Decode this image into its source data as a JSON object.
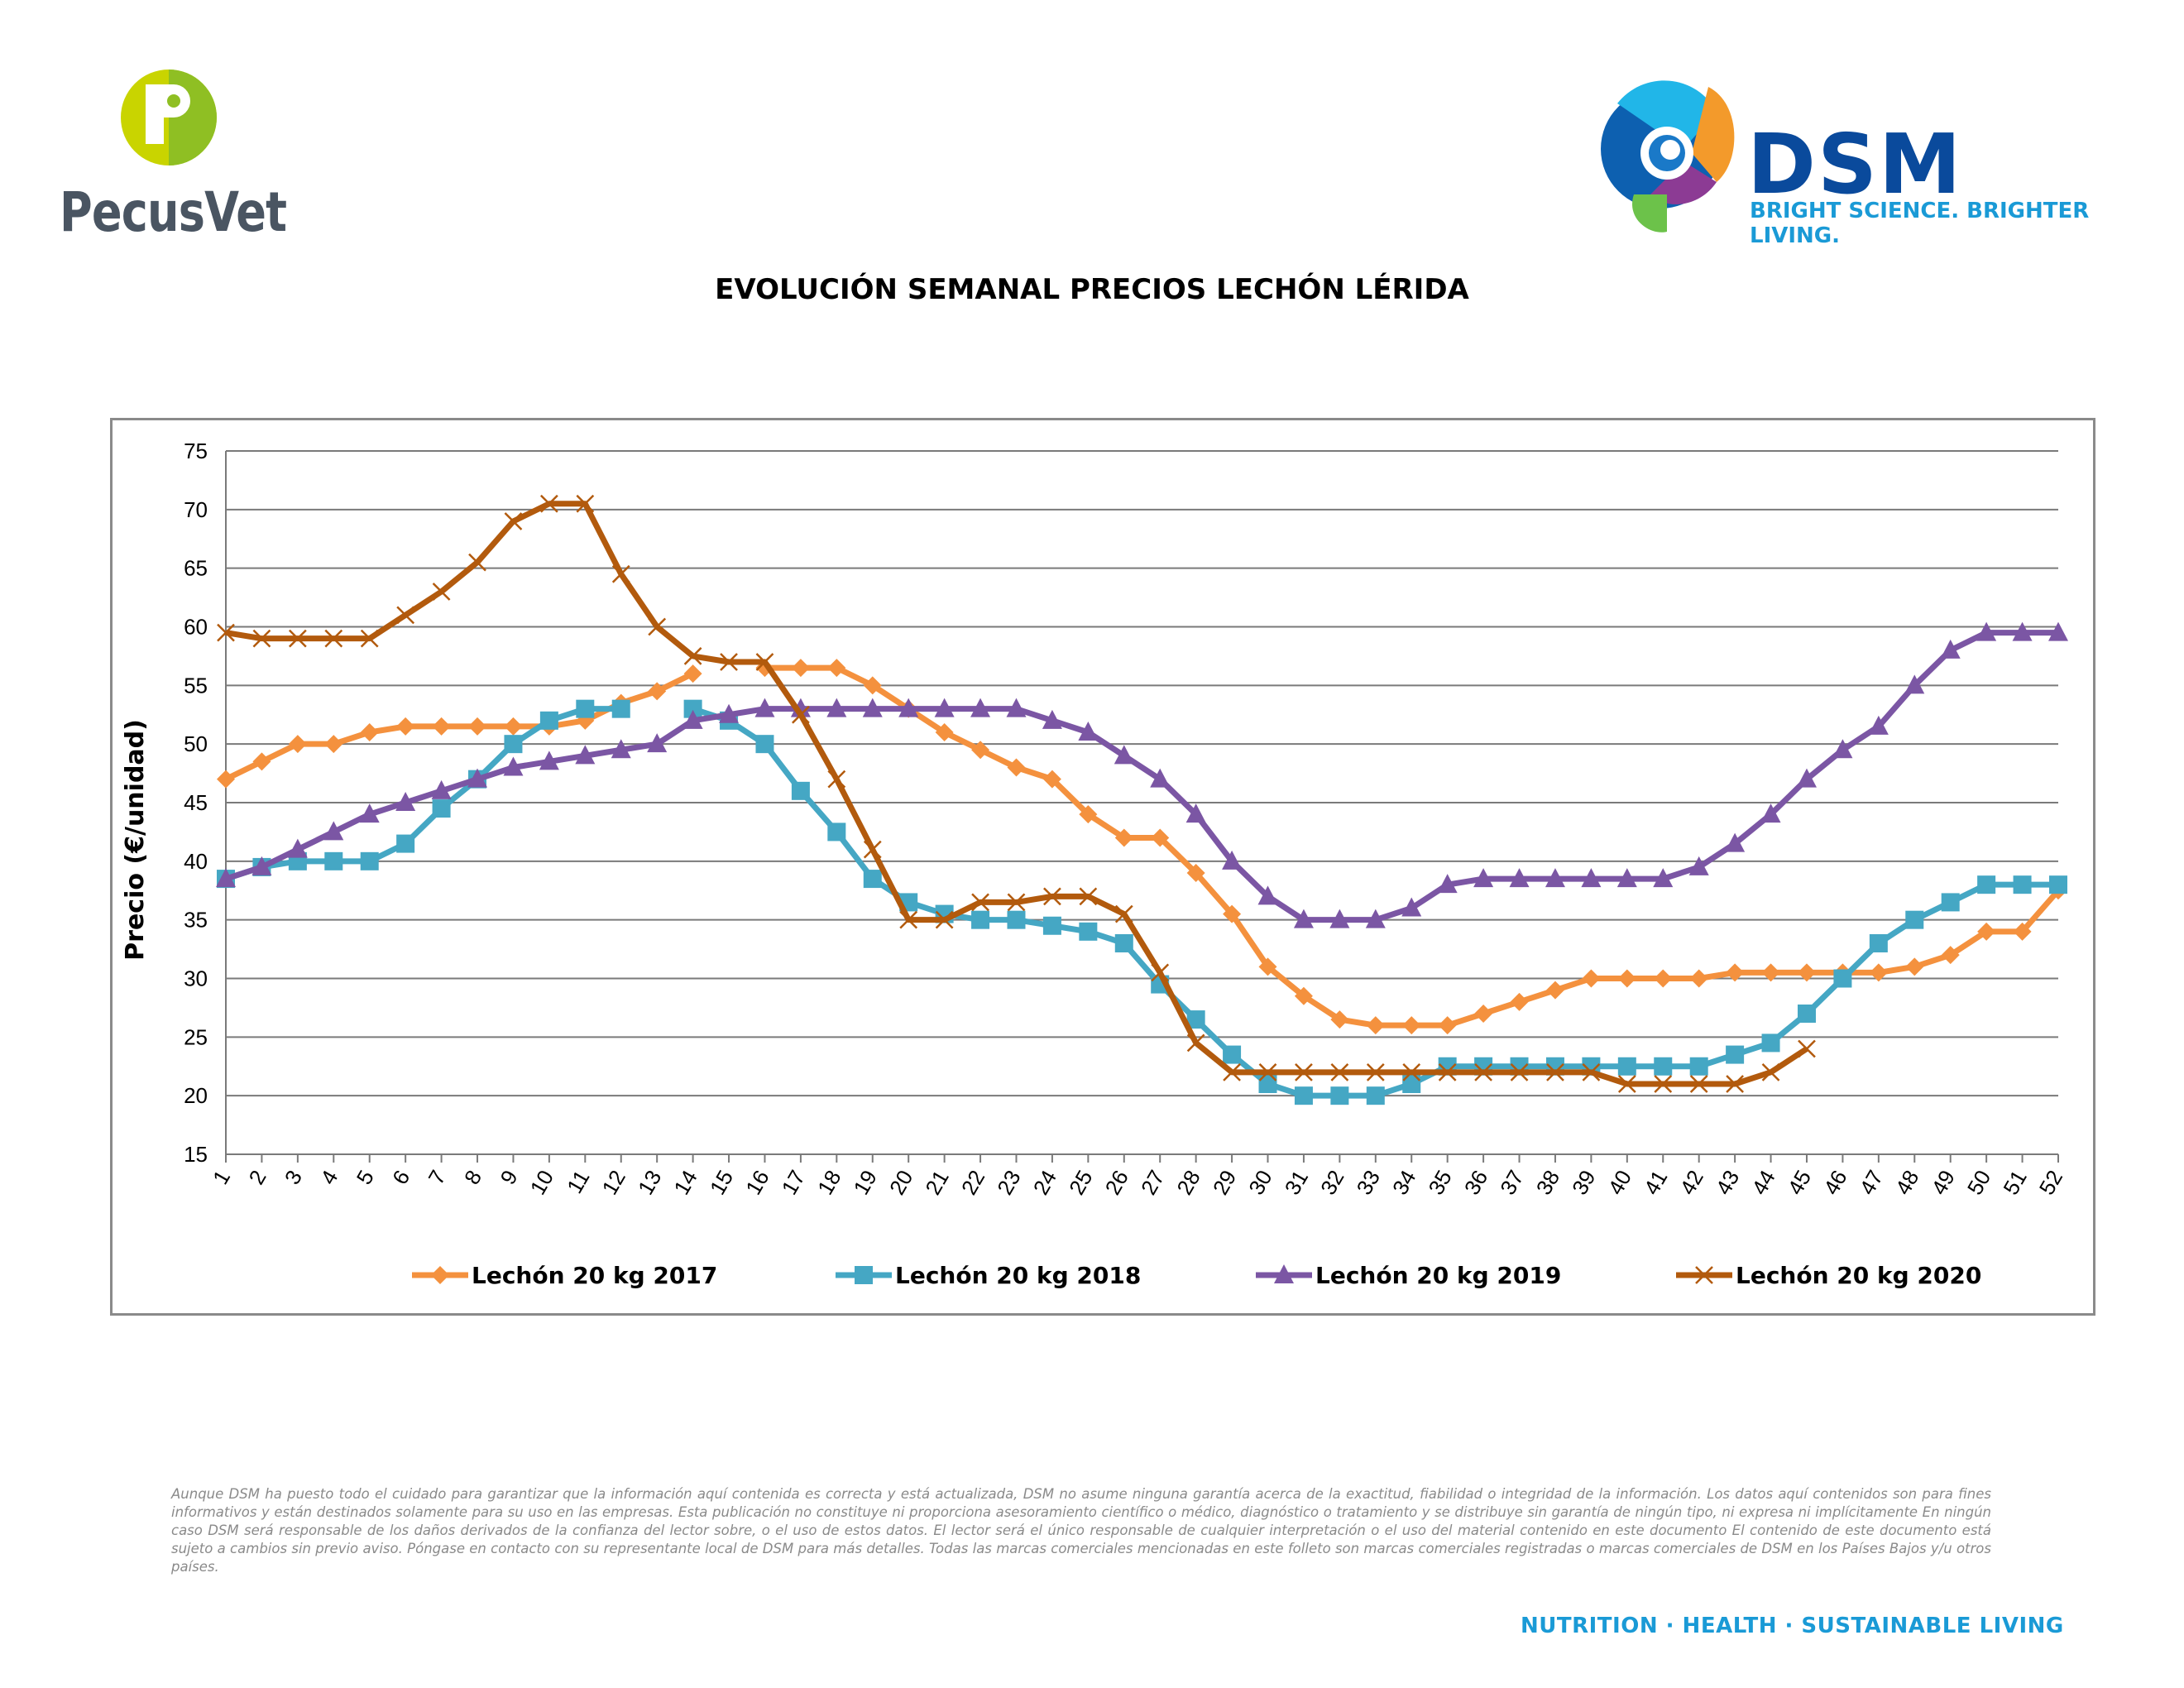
{
  "header": {
    "left_logo": {
      "name": "PecusVet",
      "icon": "pecusvet-p-logo",
      "color": "#9bc21f"
    },
    "right_logo": {
      "name": "DSM",
      "tagline": "BRIGHT SCIENCE. BRIGHTER LIVING.",
      "icon": "dsm-swirl-logo",
      "color": "#0a4a9c"
    }
  },
  "footer": {
    "disclaimer": "Aunque DSM ha puesto todo el cuidado para garantizar que la información aquí contenida es correcta y está actualizada, DSM no asume ninguna garantía acerca de la exactitud, fiabilidad o integridad de la información. Los datos aquí contenidos son para fines informativos y están destinados solamente para su uso en las empresas. Esta publicación no constituye ni proporciona asesoramiento científico o médico, diagnóstico o tratamiento y se distribuye sin garantía de ningún tipo, ni expresa ni implícitamente En ningún caso DSM será responsable de los daños derivados de la confianza del lector sobre, o el uso de estos datos. El lector será el único responsable de cualquier interpretación o el uso del material contenido en este documento El contenido de este documento está sujeto a cambios sin previo aviso. Póngase en contacto con su representante local de DSM para más detalles. Todas las marcas comerciales mencionadas en este folleto son marcas comerciales registradas o marcas comerciales de DSM en los Países Bajos y/u otros países.",
    "tagline": "NUTRITION · HEALTH · SUSTAINABLE LIVING"
  },
  "chart_data": {
    "type": "line",
    "title": "EVOLUCIÓN SEMANAL PRECIOS LECHÓN LÉRIDA",
    "xlabel": "",
    "ylabel": "Precio (€/unidad)",
    "ylim": [
      15,
      75
    ],
    "yticks": [
      15,
      20,
      25,
      30,
      35,
      40,
      45,
      50,
      55,
      60,
      65,
      70,
      75
    ],
    "x": [
      1,
      2,
      3,
      4,
      5,
      6,
      7,
      8,
      9,
      10,
      11,
      12,
      13,
      14,
      15,
      16,
      17,
      18,
      19,
      20,
      21,
      22,
      23,
      24,
      25,
      26,
      27,
      28,
      29,
      30,
      31,
      32,
      33,
      34,
      35,
      36,
      37,
      38,
      39,
      40,
      41,
      42,
      43,
      44,
      45,
      46,
      47,
      48,
      49,
      50,
      51,
      52
    ],
    "grid": "horizontal",
    "legend_position": "bottom",
    "series": [
      {
        "name": "Lechón 20 kg 2017",
        "color": "#f4913e",
        "marker": "diamond",
        "values": [
          47,
          48.5,
          50,
          50,
          51,
          51.5,
          51.5,
          51.5,
          51.5,
          51.5,
          52,
          53.5,
          54.5,
          56,
          null,
          56.5,
          56.5,
          56.5,
          55,
          53,
          51,
          49.5,
          48,
          47,
          44,
          42,
          42,
          39,
          35.5,
          31,
          28.5,
          26.5,
          26,
          26,
          26,
          27,
          28,
          29,
          30,
          30,
          30,
          30,
          30.5,
          30.5,
          30.5,
          30.5,
          30.5,
          31,
          32,
          34,
          34,
          37.5
        ]
      },
      {
        "name": "Lechón 20 kg 2018",
        "color": "#45a7c4",
        "marker": "square",
        "values": [
          38.5,
          39.5,
          40,
          40,
          40,
          41.5,
          44.5,
          47,
          50,
          52,
          53,
          53,
          null,
          53,
          52,
          50,
          46,
          42.5,
          38.5,
          36.5,
          35.5,
          35,
          35,
          34.5,
          34,
          33,
          29.5,
          26.5,
          23.5,
          21,
          20,
          20,
          20,
          21,
          22.5,
          22.5,
          22.5,
          22.5,
          22.5,
          22.5,
          22.5,
          22.5,
          23.5,
          24.5,
          27,
          30,
          33,
          35,
          36.5,
          38,
          38,
          38
        ]
      },
      {
        "name": "Lechón 20 kg 2019",
        "color": "#7b56a4",
        "marker": "triangle",
        "values": [
          38.5,
          39.5,
          41,
          42.5,
          44,
          45,
          46,
          47,
          48,
          48.5,
          49,
          49.5,
          50,
          52,
          52.5,
          53,
          53,
          53,
          53,
          53,
          53,
          53,
          53,
          52,
          51,
          49,
          47,
          44,
          40,
          37,
          35,
          35,
          35,
          36,
          38,
          38.5,
          38.5,
          38.5,
          38.5,
          38.5,
          38.5,
          39.5,
          41.5,
          44,
          47,
          49.5,
          51.5,
          55,
          58,
          59.5,
          59.5,
          59.5
        ]
      },
      {
        "name": "Lechón 20 kg 2020",
        "color": "#b25a0d",
        "marker": "x",
        "values": [
          59.5,
          59,
          59,
          59,
          59,
          61,
          63,
          65.5,
          69,
          70.5,
          70.5,
          64.5,
          60,
          57.5,
          57,
          57,
          52.5,
          47,
          41,
          35,
          35,
          36.5,
          36.5,
          37,
          37,
          35.5,
          30.5,
          24.5,
          22,
          22,
          22,
          22,
          22,
          22,
          22,
          22,
          22,
          22,
          22,
          21,
          21,
          21,
          21,
          22,
          24,
          null,
          null,
          null,
          null,
          null,
          null,
          null
        ]
      }
    ]
  }
}
